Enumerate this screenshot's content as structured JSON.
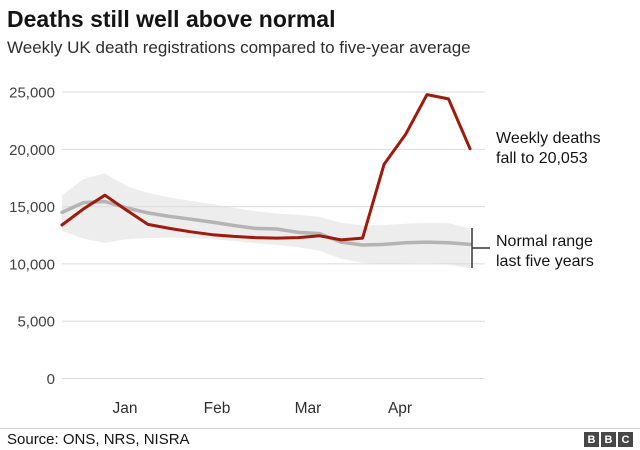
{
  "header": {
    "title": "Deaths still well above normal",
    "subtitle": "Weekly UK death registrations compared to five-year average"
  },
  "chart_data": {
    "type": "line",
    "title": "Deaths still well above normal",
    "subtitle": "Weekly UK death registrations compared to five-year average",
    "grid": "horizontal",
    "legend": "none",
    "x_axis": {
      "labels": [
        "Jan",
        "Feb",
        "Mar",
        "Apr"
      ],
      "unit": "weeks, January to mid-May"
    },
    "y_axis": {
      "range": [
        0,
        25000
      ],
      "ticks": [
        {
          "label": "25,000",
          "value": 25000
        },
        {
          "label": "20,000",
          "value": 20000
        },
        {
          "label": "15,000",
          "value": 15000
        },
        {
          "label": "10,000",
          "value": 10000
        },
        {
          "label": "5,000",
          "value": 5000
        },
        {
          "label": "0",
          "value": 0
        }
      ]
    },
    "series": [
      {
        "name": "Weekly deaths",
        "color": "#9d1a0c",
        "values": [
          13400,
          14800,
          16000,
          14700,
          13450,
          13100,
          12800,
          12550,
          12400,
          12300,
          12250,
          12300,
          12450,
          12100,
          12250,
          18700,
          21300,
          24780,
          24400,
          20053
        ]
      },
      {
        "name": "Five-year average",
        "color": "#b4b4b4",
        "values": [
          14500,
          15350,
          15450,
          14900,
          14450,
          14150,
          13900,
          13650,
          13350,
          13100,
          13050,
          12750,
          12650,
          11900,
          11650,
          11700,
          11850,
          11900,
          11850,
          11700
        ]
      }
    ],
    "band": {
      "name": "Normal range last five years",
      "color": "#ededed",
      "upper": [
        16000,
        17400,
        17900,
        16800,
        16200,
        15800,
        15500,
        15200,
        14900,
        14600,
        14400,
        14300,
        14100,
        13600,
        13350,
        13400,
        13500,
        13600,
        13550,
        13100
      ],
      "lower": [
        12900,
        12200,
        11850,
        12150,
        12250,
        12300,
        12250,
        12150,
        12000,
        11800,
        11650,
        11450,
        11150,
        10450,
        10100,
        10000,
        10050,
        10100,
        9950,
        9600
      ]
    },
    "annotations": [
      {
        "id": "weekly-deaths-callout",
        "lines": [
          "Weekly deaths",
          "fall to 20,053"
        ]
      },
      {
        "id": "normal-range-callout",
        "lines": [
          "Normal range",
          "last five years"
        ]
      }
    ],
    "last_point_value": "20,053"
  },
  "footer": {
    "source": "Source: ONS, NRS, NISRA",
    "logo_letters": [
      "B",
      "B",
      "C"
    ]
  }
}
